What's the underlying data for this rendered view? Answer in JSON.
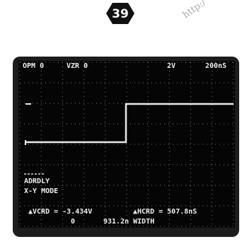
{
  "badge": "39",
  "watermark": "http:/",
  "screen": {
    "top": [
      "OPM 0",
      "VZR 0",
      "2V",
      "200nS"
    ],
    "mode": [
      "ADRDLY",
      "X-Y MODE"
    ],
    "readout": [
      "▲VCRD = -3.434V",
      "▲HCRD = 507.8nS",
      "0",
      "931.2n WIDTH"
    ]
  }
}
